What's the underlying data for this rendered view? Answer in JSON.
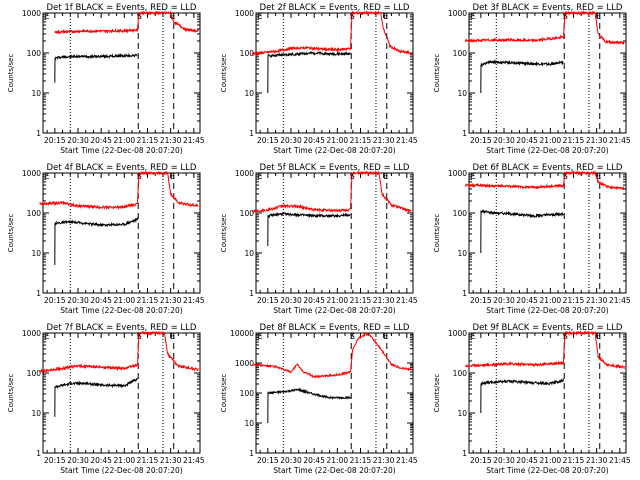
{
  "page": {
    "background": "#ffffff"
  },
  "colors": {
    "events": "#000000",
    "lld": "#ff0000",
    "axis": "#000000"
  },
  "shared": {
    "y_label": "Counts/sec",
    "x_label": "Start Time (22-Dec-08 20:07:20)",
    "x_ticks": [
      "20:15",
      "20:30",
      "20:45",
      "21:00",
      "21:15",
      "21:30",
      "21:45"
    ],
    "x_tick_minutes": [
      15,
      30,
      45,
      60,
      75,
      90,
      105
    ],
    "x_range_minutes": [
      7.33,
      109
    ],
    "flag_labels": {
      "S": "S",
      "E": "E"
    },
    "event_markers_minutes": {
      "dotted_1": 25,
      "dashed_start": 69,
      "dotted_2": 85,
      "dashed_end": 92
    },
    "legend_text": "BLACK = Events, RED = LLD"
  },
  "chart_data": [
    {
      "type": "line",
      "title": "Det 1f BLACK = Events, RED = LLD",
      "y_scale": "log",
      "ylim": [
        1,
        1000
      ],
      "y_ticks": [
        "1",
        "10",
        "100",
        "1000"
      ],
      "series": [
        {
          "color": "#000000",
          "points": [
            [
              15,
              18
            ],
            [
              15.1,
              75
            ],
            [
              20,
              80
            ],
            [
              30,
              82
            ],
            [
              45,
              82
            ],
            [
              60,
              85
            ],
            [
              68.5,
              88
            ]
          ]
        },
        {
          "color": "#ff0000",
          "points": [
            [
              15,
              330
            ],
            [
              30,
              350
            ],
            [
              45,
              355
            ],
            [
              60,
              360
            ],
            [
              68.5,
              380
            ],
            [
              69.5,
              1000
            ],
            [
              90,
              1000
            ],
            [
              92,
              600
            ],
            [
              100,
              380
            ],
            [
              108,
              360
            ]
          ]
        }
      ]
    },
    {
      "type": "line",
      "title": "Det 2f BLACK = Events, RED = LLD",
      "y_scale": "log",
      "ylim": [
        1,
        1000
      ],
      "y_ticks": [
        "1",
        "10",
        "100",
        "1000"
      ],
      "series": [
        {
          "color": "#000000",
          "points": [
            [
              15,
              10
            ],
            [
              15.1,
              85
            ],
            [
              25,
              90
            ],
            [
              35,
              95
            ],
            [
              45,
              100
            ],
            [
              55,
              95
            ],
            [
              68.5,
              95
            ]
          ]
        },
        {
          "color": "#ff0000",
          "points": [
            [
              5,
              95
            ],
            [
              20,
              110
            ],
            [
              30,
              130
            ],
            [
              40,
              135
            ],
            [
              50,
              125
            ],
            [
              60,
              120
            ],
            [
              68.5,
              130
            ],
            [
              69.5,
              1000
            ],
            [
              88,
              1000
            ],
            [
              90,
              400
            ],
            [
              94,
              150
            ],
            [
              100,
              110
            ],
            [
              108,
              100
            ]
          ]
        }
      ]
    },
    {
      "type": "line",
      "title": "Det 3f BLACK = Events, RED = LLD",
      "y_scale": "log",
      "ylim": [
        1,
        1000
      ],
      "y_ticks": [
        "1",
        "10",
        "100",
        "1000"
      ],
      "series": [
        {
          "color": "#000000",
          "points": [
            [
              15,
              10
            ],
            [
              15.1,
              50
            ],
            [
              20,
              60
            ],
            [
              30,
              58
            ],
            [
              45,
              55
            ],
            [
              60,
              52
            ],
            [
              68.5,
              60
            ]
          ]
        },
        {
          "color": "#ff0000",
          "points": [
            [
              5,
              200
            ],
            [
              20,
              210
            ],
            [
              35,
              210
            ],
            [
              50,
              205
            ],
            [
              68.5,
              250
            ],
            [
              69.5,
              1000
            ],
            [
              89,
              1000
            ],
            [
              91,
              300
            ],
            [
              96,
              190
            ],
            [
              108,
              180
            ]
          ]
        }
      ]
    },
    {
      "type": "line",
      "title": "Det 4f BLACK = Events, RED = LLD",
      "y_scale": "log",
      "ylim": [
        1,
        1000
      ],
      "y_ticks": [
        "1",
        "10",
        "100",
        "1000"
      ],
      "series": [
        {
          "color": "#000000",
          "points": [
            [
              15,
              5
            ],
            [
              15.1,
              55
            ],
            [
              25,
              60
            ],
            [
              35,
              55
            ],
            [
              45,
              50
            ],
            [
              60,
              52
            ],
            [
              68.5,
              70
            ]
          ]
        },
        {
          "color": "#ff0000",
          "points": [
            [
              5,
              170
            ],
            [
              20,
              180
            ],
            [
              30,
              150
            ],
            [
              45,
              140
            ],
            [
              60,
              140
            ],
            [
              68.5,
              170
            ],
            [
              69.5,
              1000
            ],
            [
              88,
              1000
            ],
            [
              90,
              300
            ],
            [
              95,
              180
            ],
            [
              108,
              150
            ]
          ]
        }
      ]
    },
    {
      "type": "line",
      "title": "Det 5f BLACK = Events, RED = LLD",
      "y_scale": "log",
      "ylim": [
        1,
        1000
      ],
      "y_ticks": [
        "1",
        "10",
        "100",
        "1000"
      ],
      "series": [
        {
          "color": "#000000",
          "points": [
            [
              15,
              15
            ],
            [
              15.1,
              85
            ],
            [
              25,
              95
            ],
            [
              35,
              90
            ],
            [
              45,
              85
            ],
            [
              60,
              85
            ],
            [
              68.5,
              90
            ]
          ]
        },
        {
          "color": "#ff0000",
          "points": [
            [
              5,
              110
            ],
            [
              15,
              120
            ],
            [
              25,
              150
            ],
            [
              35,
              145
            ],
            [
              45,
              120
            ],
            [
              60,
              115
            ],
            [
              68.5,
              120
            ],
            [
              69.5,
              1000
            ],
            [
              87,
              1000
            ],
            [
              89,
              300
            ],
            [
              95,
              160
            ],
            [
              108,
              110
            ]
          ]
        }
      ]
    },
    {
      "type": "line",
      "title": "Det 6f BLACK = Events, RED = LLD",
      "y_scale": "log",
      "ylim": [
        1,
        1000
      ],
      "y_ticks": [
        "1",
        "10",
        "100",
        "1000"
      ],
      "series": [
        {
          "color": "#000000",
          "points": [
            [
              15,
              10
            ],
            [
              15.1,
              110
            ],
            [
              25,
              100
            ],
            [
              35,
              95
            ],
            [
              50,
              85
            ],
            [
              68.5,
              95
            ]
          ]
        },
        {
          "color": "#ff0000",
          "points": [
            [
              5,
              500
            ],
            [
              20,
              480
            ],
            [
              35,
              460
            ],
            [
              50,
              440
            ],
            [
              68.5,
              480
            ],
            [
              69.5,
              1000
            ],
            [
              89,
              1000
            ],
            [
              91,
              600
            ],
            [
              97,
              450
            ],
            [
              108,
              400
            ]
          ]
        }
      ]
    },
    {
      "type": "line",
      "title": "Det 7f BLACK = Events, RED = LLD",
      "y_scale": "log",
      "ylim": [
        1,
        1000
      ],
      "y_ticks": [
        "1",
        "10",
        "100",
        "1000"
      ],
      "series": [
        {
          "color": "#000000",
          "points": [
            [
              15,
              8
            ],
            [
              15.1,
              45
            ],
            [
              25,
              55
            ],
            [
              35,
              55
            ],
            [
              45,
              50
            ],
            [
              60,
              48
            ],
            [
              68.5,
              70
            ]
          ]
        },
        {
          "color": "#ff0000",
          "points": [
            [
              5,
              110
            ],
            [
              20,
              130
            ],
            [
              30,
              150
            ],
            [
              45,
              140
            ],
            [
              60,
              130
            ],
            [
              68.5,
              160
            ],
            [
              69.5,
              1000
            ],
            [
              86,
              1000
            ],
            [
              88,
              300
            ],
            [
              95,
              150
            ],
            [
              108,
              120
            ]
          ]
        }
      ]
    },
    {
      "type": "line",
      "title": "Det 8f BLACK = Events, RED = LLD",
      "y_scale": "log",
      "ylim": [
        1,
        10000
      ],
      "y_ticks": [
        "1",
        "10",
        "100",
        "1000",
        "10000"
      ],
      "series": [
        {
          "color": "#000000",
          "points": [
            [
              15,
              10
            ],
            [
              15.1,
              100
            ],
            [
              25,
              110
            ],
            [
              35,
              130
            ],
            [
              45,
              90
            ],
            [
              55,
              70
            ],
            [
              68.5,
              70
            ]
          ]
        },
        {
          "color": "#ff0000",
          "points": [
            [
              5,
              900
            ],
            [
              20,
              750
            ],
            [
              30,
              500
            ],
            [
              34,
              900
            ],
            [
              38,
              500
            ],
            [
              45,
              350
            ],
            [
              60,
              400
            ],
            [
              68.5,
              500
            ],
            [
              70,
              3000
            ],
            [
              74,
              7000
            ],
            [
              80,
              10000
            ],
            [
              88,
              3000
            ],
            [
              95,
              900
            ],
            [
              100,
              700
            ],
            [
              108,
              600
            ]
          ]
        }
      ]
    },
    {
      "type": "line",
      "title": "Det 9f BLACK = Events, RED = LLD",
      "y_scale": "log",
      "ylim": [
        1,
        1000
      ],
      "y_ticks": [
        "1",
        "10",
        "100",
        "1000"
      ],
      "series": [
        {
          "color": "#000000",
          "points": [
            [
              15,
              10
            ],
            [
              15.1,
              55
            ],
            [
              25,
              60
            ],
            [
              35,
              62
            ],
            [
              45,
              58
            ],
            [
              60,
              55
            ],
            [
              68.5,
              65
            ]
          ]
        },
        {
          "color": "#ff0000",
          "points": [
            [
              5,
              150
            ],
            [
              20,
              160
            ],
            [
              35,
              170
            ],
            [
              50,
              160
            ],
            [
              68.5,
              180
            ],
            [
              69.5,
              1000
            ],
            [
              89,
              1000
            ],
            [
              91,
              250
            ],
            [
              97,
              160
            ],
            [
              108,
              140
            ]
          ]
        }
      ]
    }
  ]
}
